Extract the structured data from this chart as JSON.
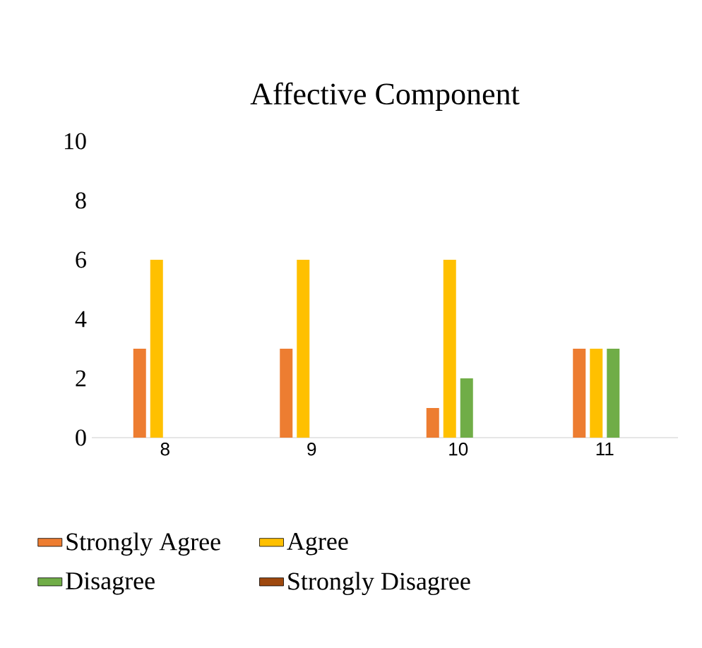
{
  "chart_data": {
    "type": "bar",
    "title": "Affective  Component",
    "categories": [
      "8",
      "9",
      "10",
      "11"
    ],
    "series": [
      {
        "name": "Strongly Agree",
        "color": "#ed7d31",
        "values": [
          3,
          3,
          1,
          3
        ]
      },
      {
        "name": "Agree",
        "color": "#ffc000",
        "values": [
          6,
          6,
          6,
          3
        ]
      },
      {
        "name": "Disagree",
        "color": "#70ad47",
        "values": [
          0,
          0,
          2,
          3
        ]
      },
      {
        "name": "Strongly Disagree",
        "color": "#9e480e",
        "values": [
          0,
          0,
          0,
          0
        ]
      }
    ],
    "ylim": [
      0,
      10
    ],
    "yticks": [
      0,
      2,
      4,
      6,
      8,
      10
    ],
    "legend": "bottom"
  }
}
